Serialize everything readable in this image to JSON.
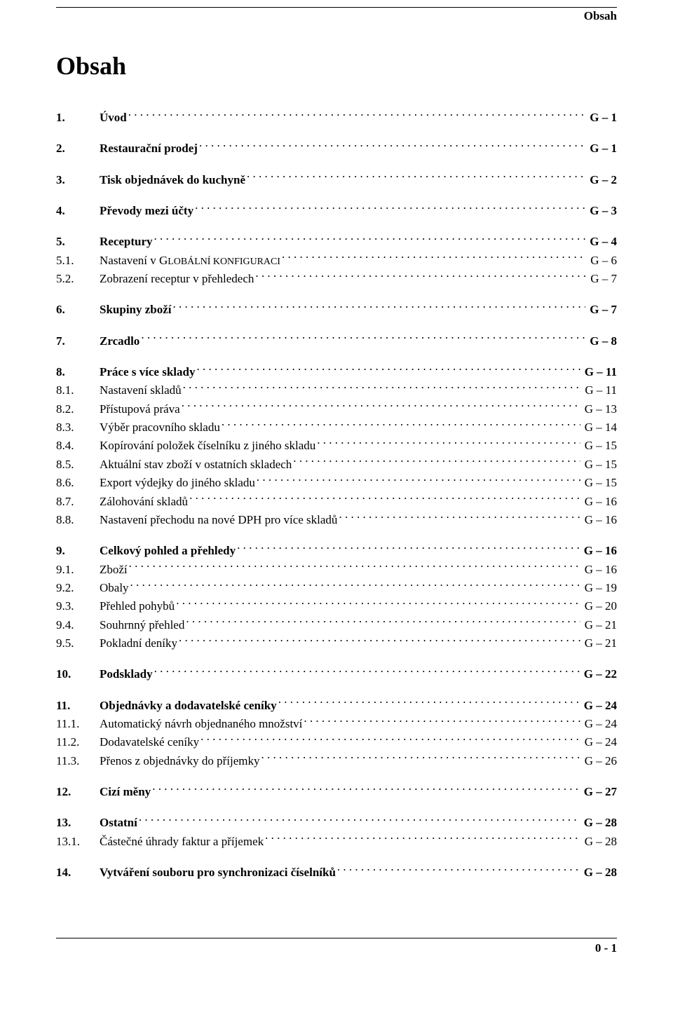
{
  "header": {
    "label": "Obsah"
  },
  "title": "Obsah",
  "footer": {
    "page_number": "0 - 1"
  },
  "toc": [
    {
      "num": "1.",
      "title": "Úvod",
      "page": "G – 1",
      "bold": true,
      "gap_after": true
    },
    {
      "num": "2.",
      "title": "Restaurační prodej",
      "page": "G – 1",
      "bold": true,
      "gap_after": true
    },
    {
      "num": "3.",
      "title": "Tisk objednávek do kuchyně",
      "page": "G – 2",
      "bold": true,
      "gap_after": true
    },
    {
      "num": "4.",
      "title": "Převody mezi účty",
      "page": "G – 3",
      "bold": true,
      "gap_after": true
    },
    {
      "num": "5.",
      "title": "Receptury",
      "page": "G – 4",
      "bold": true
    },
    {
      "num": "5.1.",
      "title_html": "Nastavení v G<span class='smallcap'>LOBÁLNÍ KONFIGURACI</span>",
      "page": "G – 6"
    },
    {
      "num": "5.2.",
      "title": "Zobrazení receptur v přehledech",
      "page": "G – 7",
      "gap_after": true
    },
    {
      "num": "6.",
      "title": "Skupiny zboží",
      "page": "G – 7",
      "bold": true,
      "gap_after": true
    },
    {
      "num": "7.",
      "title": "Zrcadlo",
      "page": "G – 8",
      "bold": true,
      "gap_after": true
    },
    {
      "num": "8.",
      "title": "Práce s více sklady",
      "page": "G – 11",
      "bold": true
    },
    {
      "num": "8.1.",
      "title": "Nastavení skladů",
      "page": "G – 11"
    },
    {
      "num": "8.2.",
      "title": "Přístupová práva",
      "page": "G – 13"
    },
    {
      "num": "8.3.",
      "title": "Výběr pracovního skladu",
      "page": "G – 14"
    },
    {
      "num": "8.4.",
      "title": "Kopírování položek číselníku z jiného skladu",
      "page": "G – 15"
    },
    {
      "num": "8.5.",
      "title": "Aktuální stav zboží v ostatních skladech",
      "page": "G – 15"
    },
    {
      "num": "8.6.",
      "title": "Export výdejky do jiného skladu",
      "page": "G – 15"
    },
    {
      "num": "8.7.",
      "title": "Zálohování skladů",
      "page": "G – 16"
    },
    {
      "num": "8.8.",
      "title": "Nastavení přechodu na nové DPH pro více skladů",
      "page": "G – 16",
      "gap_after": true
    },
    {
      "num": "9.",
      "title": "Celkový pohled a přehledy",
      "page": "G – 16",
      "bold": true
    },
    {
      "num": "9.1.",
      "title": "Zboží",
      "page": "G – 16"
    },
    {
      "num": "9.2.",
      "title": "Obaly",
      "page": "G – 19"
    },
    {
      "num": "9.3.",
      "title": "Přehled pohybů",
      "page": "G – 20"
    },
    {
      "num": "9.4.",
      "title": "Souhrnný přehled",
      "page": "G – 21"
    },
    {
      "num": "9.5.",
      "title": "Pokladní deníky",
      "page": "G – 21",
      "gap_after": true
    },
    {
      "num": "10.",
      "title": "Podsklady",
      "page": "G – 22",
      "bold": true,
      "gap_after": true
    },
    {
      "num": "11.",
      "title": "Objednávky a dodavatelské ceníky",
      "page": "G – 24",
      "bold": true
    },
    {
      "num": "11.1.",
      "title": "Automatický návrh objednaného množství",
      "page": "G – 24"
    },
    {
      "num": "11.2.",
      "title": "Dodavatelské ceníky",
      "page": "G – 24"
    },
    {
      "num": "11.3.",
      "title": "Přenos z objednávky do příjemky",
      "page": "G – 26",
      "gap_after": true
    },
    {
      "num": "12.",
      "title": "Cizí měny",
      "page": "G – 27",
      "bold": true,
      "gap_after": true
    },
    {
      "num": "13.",
      "title": "Ostatní",
      "page": "G – 28",
      "bold": true
    },
    {
      "num": "13.1.",
      "title": "Částečné úhrady faktur a příjemek",
      "page": "G – 28",
      "gap_after": true
    },
    {
      "num": "14.",
      "title": "Vytváření souboru pro synchronizaci číselníků",
      "page": "G – 28",
      "bold": true
    }
  ]
}
